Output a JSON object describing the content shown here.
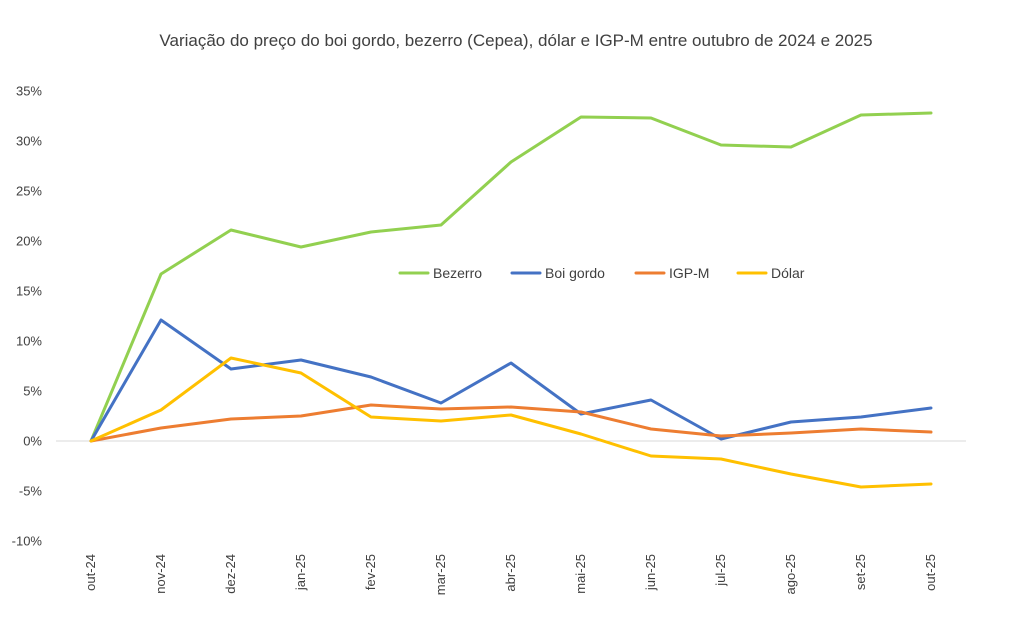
{
  "chart_data": {
    "type": "line",
    "title": "Variação do preço do boi gordo, bezerro (Cepea), dólar e IGP-M entre outubro de 2024 e 2025",
    "xlabel": "",
    "ylabel": "",
    "categories": [
      "out-24",
      "nov-24",
      "dez-24",
      "jan-25",
      "fev-25",
      "mar-25",
      "abr-25",
      "mai-25",
      "jun-25",
      "jul-25",
      "ago-25",
      "set-25",
      "out-25"
    ],
    "ylim": [
      -10,
      35
    ],
    "yticks": [
      -10,
      -5,
      0,
      5,
      10,
      15,
      20,
      25,
      30,
      35
    ],
    "ytick_labels": [
      "-10%",
      "-5%",
      "0%",
      "5%",
      "10%",
      "15%",
      "20%",
      "25%",
      "30%",
      "35%"
    ],
    "grid": false,
    "legend_position": "center",
    "series": [
      {
        "name": "Bezerro",
        "color": "#92D050",
        "values": [
          0,
          16.7,
          21.1,
          19.4,
          20.9,
          21.6,
          27.9,
          32.4,
          32.3,
          29.6,
          29.4,
          32.6,
          32.8
        ]
      },
      {
        "name": "Boi gordo",
        "color": "#4472C4",
        "values": [
          0,
          12.1,
          7.2,
          8.1,
          6.4,
          3.8,
          7.8,
          2.7,
          4.1,
          0.2,
          1.9,
          2.4,
          3.3
        ]
      },
      {
        "name": "IGP-M",
        "color": "#ED7D31",
        "values": [
          0,
          1.3,
          2.2,
          2.5,
          3.6,
          3.2,
          3.4,
          2.9,
          1.2,
          0.5,
          0.8,
          1.2,
          0.9
        ]
      },
      {
        "name": "Dólar",
        "color": "#FFC000",
        "values": [
          0,
          3.1,
          8.3,
          6.8,
          2.4,
          2.0,
          2.6,
          0.7,
          -1.5,
          -1.8,
          -3.3,
          -4.6,
          -4.3
        ]
      }
    ]
  }
}
